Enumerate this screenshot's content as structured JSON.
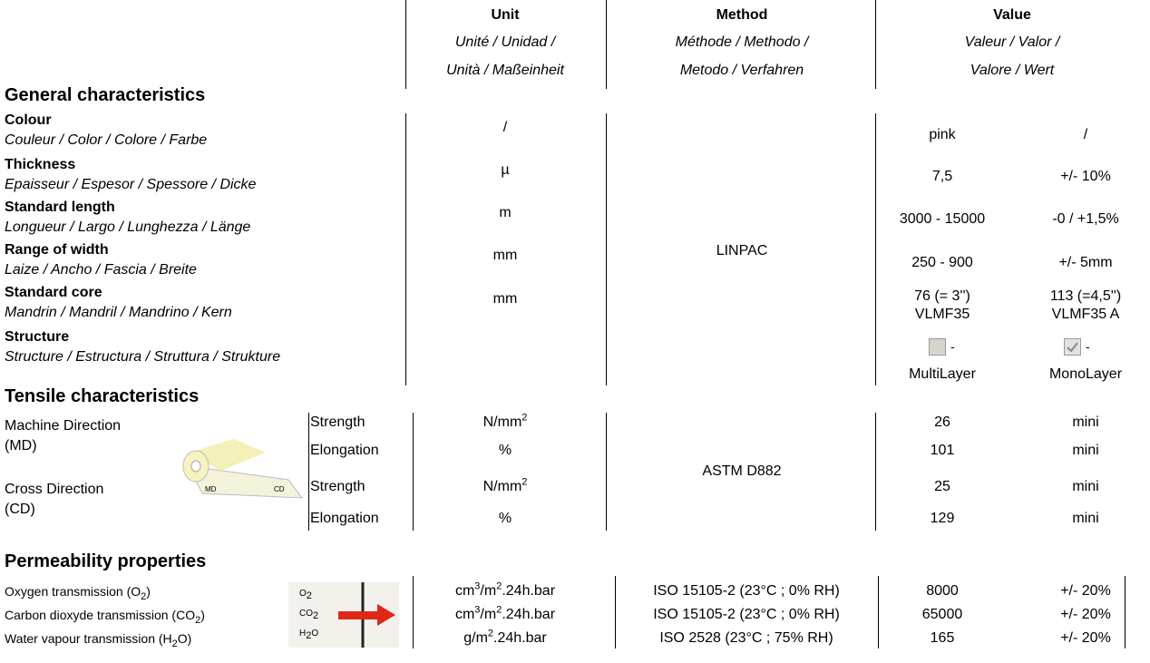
{
  "header": {
    "columns": [
      {
        "title": "Unit",
        "subtitle_lines": [
          "Unité / Unidad /",
          "Unità / Maßeinheit"
        ]
      },
      {
        "title": "Method",
        "subtitle_lines": [
          "Méthode / Methodo /",
          "Metodo / Verfahren"
        ]
      },
      {
        "title": "Value",
        "subtitle_lines": [
          "Valeur / Valor /",
          "Valore / Wert"
        ]
      }
    ]
  },
  "general": {
    "title": "General characteristics",
    "method": "LINPAC",
    "rows": [
      {
        "label": "Colour",
        "translations": "Couleur / Color / Colore / Farbe",
        "unit": "/",
        "value": "pink",
        "tolerance": "/"
      },
      {
        "label": "Thickness",
        "translations": "Epaisseur / Espesor / Spessore / Dicke",
        "unit": "µ",
        "value": "7,5",
        "tolerance": "+/- 10%"
      },
      {
        "label": "Standard length",
        "translations": "Longueur / Largo / Lunghezza / Länge",
        "unit": "m",
        "value": "3000 - 15000",
        "tolerance": "-0 / +1,5%"
      },
      {
        "label": "Range of width",
        "translations": "Laize / Ancho / Fascia / Breite",
        "unit": "mm",
        "value": "250 - 900",
        "tolerance": "+/- 5mm"
      },
      {
        "label": "Standard core",
        "translations": "Mandrin / Mandril / Mandrino / Kern",
        "unit": "mm",
        "value_lines": [
          "76 (= 3'')",
          "VLMF35"
        ],
        "tolerance_lines": [
          "113 (=4,5'')",
          "VLMF35 A"
        ]
      },
      {
        "label": "Structure",
        "translations": "Structure / Estructura / Struttura / Strukture",
        "options": [
          {
            "mark": "-",
            "label": "MultiLayer"
          },
          {
            "mark": "-",
            "label": "MonoLayer"
          }
        ]
      }
    ]
  },
  "tensile": {
    "title": "Tensile characteristics",
    "method": "ASTM D882",
    "image_labels": [
      "MD",
      "CD"
    ],
    "directions": [
      {
        "label_lines": [
          "Machine Direction",
          "(MD)"
        ]
      },
      {
        "label_lines": [
          "Cross Direction",
          "(CD)"
        ]
      }
    ],
    "rows": [
      {
        "property": "Strength",
        "unit": [
          {
            "text": "N/mm"
          },
          {
            "sup": "2"
          }
        ],
        "value": "26",
        "limit": "mini"
      },
      {
        "property": "Elongation",
        "unit": [
          {
            "text": "%"
          }
        ],
        "value": "101",
        "limit": "mini"
      },
      {
        "property": "Strength",
        "unit": [
          {
            "text": "N/mm"
          },
          {
            "sup": "2"
          }
        ],
        "value": "25",
        "limit": "mini"
      },
      {
        "property": "Elongation",
        "unit": [
          {
            "text": "%"
          }
        ],
        "value": "129",
        "limit": "mini"
      }
    ]
  },
  "permeability": {
    "title": "Permeability properties",
    "image_labels": [
      [
        {
          "text": "O"
        },
        {
          "sub": "2"
        }
      ],
      [
        {
          "text": "CO"
        },
        {
          "sub": "2"
        }
      ],
      [
        {
          "text": "H"
        },
        {
          "sub": "2"
        },
        {
          "text": "O"
        }
      ]
    ],
    "rows": [
      {
        "label": [
          {
            "text": "Oxygen transmission (O"
          },
          {
            "sub": "2"
          },
          {
            "text": ")"
          }
        ],
        "unit": [
          {
            "text": "cm"
          },
          {
            "sup": "3"
          },
          {
            "text": "/m"
          },
          {
            "sup": "2"
          },
          {
            "text": ".24h.bar"
          }
        ],
        "method": "ISO 15105-2 (23°C ; 0% RH)",
        "value": "8000",
        "tolerance": "+/- 20%"
      },
      {
        "label": [
          {
            "text": "Carbon dioxyde transmission (CO"
          },
          {
            "sub": "2"
          },
          {
            "text": ")"
          }
        ],
        "unit": [
          {
            "text": "cm"
          },
          {
            "sup": "3"
          },
          {
            "text": "/m"
          },
          {
            "sup": "2"
          },
          {
            "text": ".24h.bar"
          }
        ],
        "method": "ISO 15105-2 (23°C ; 0% RH)",
        "value": "65000",
        "tolerance": "+/- 20%"
      },
      {
        "label": [
          {
            "text": "Water vapour transmission (H"
          },
          {
            "sub": "2"
          },
          {
            "text": "O)"
          }
        ],
        "unit": [
          {
            "text": "g/m"
          },
          {
            "sup": "2"
          },
          {
            "text": ".24h.bar"
          }
        ],
        "method": "ISO 2528 (23°C ; 75% RH)",
        "value": "165",
        "tolerance": "+/- 20%"
      }
    ]
  }
}
